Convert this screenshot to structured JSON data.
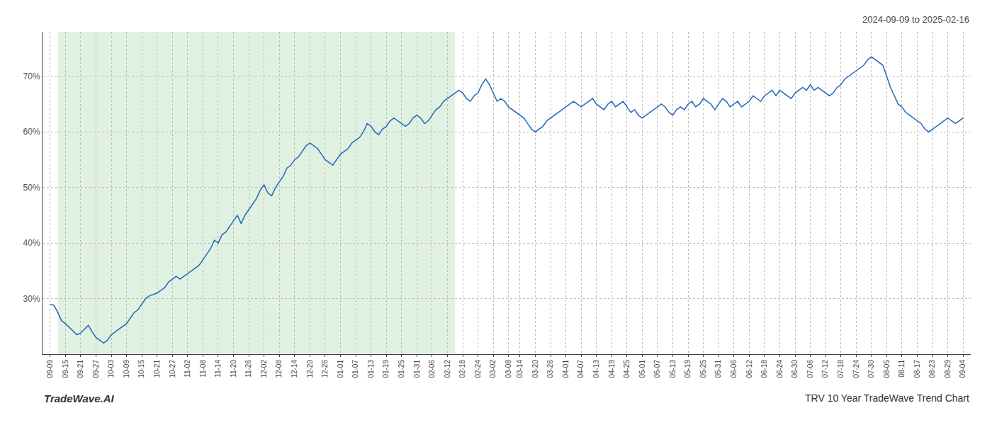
{
  "chart_data": {
    "type": "line",
    "categories": [
      "09-09",
      null,
      null,
      null,
      "09-15",
      null,
      null,
      null,
      "09-21",
      null,
      null,
      null,
      "09-27",
      null,
      null,
      null,
      "10-03",
      null,
      null,
      null,
      "10-09",
      null,
      null,
      null,
      "10-15",
      null,
      null,
      null,
      "10-21",
      null,
      null,
      null,
      "10-27",
      null,
      null,
      null,
      "11-02",
      null,
      null,
      null,
      "11-08",
      null,
      null,
      null,
      "11-14",
      null,
      null,
      null,
      "11-20",
      null,
      null,
      null,
      "11-26",
      null,
      null,
      null,
      "12-02",
      null,
      null,
      null,
      "12-08",
      null,
      null,
      null,
      "12-14",
      null,
      null,
      null,
      "12-20",
      null,
      null,
      null,
      "12-26",
      null,
      null,
      null,
      "01-01",
      null,
      null,
      null,
      "01-07",
      null,
      null,
      null,
      "01-13",
      null,
      null,
      null,
      "01-19",
      null,
      null,
      null,
      "01-25",
      null,
      null,
      null,
      "01-31",
      null,
      null,
      null,
      "02-06",
      null,
      null,
      null,
      "02-12",
      null,
      null,
      null,
      "02-18",
      null,
      null,
      null,
      "02-24",
      null,
      null,
      null,
      "03-02",
      null,
      null,
      null,
      "03-08",
      null,
      null,
      "03-14",
      null,
      null,
      null,
      "03-20",
      null,
      null,
      null,
      "03-26",
      null,
      null,
      null,
      "04-01",
      null,
      null,
      null,
      "04-07",
      null,
      null,
      null,
      "04-13",
      null,
      null,
      null,
      "04-19",
      null,
      null,
      null,
      "04-25",
      null,
      null,
      null,
      "05-01",
      null,
      null,
      null,
      "05-07",
      null,
      null,
      null,
      "05-13",
      null,
      null,
      null,
      "05-19",
      null,
      null,
      null,
      "05-25",
      null,
      null,
      null,
      "05-31",
      null,
      null,
      null,
      "06-06",
      null,
      null,
      null,
      "06-12",
      null,
      null,
      null,
      "06-18",
      null,
      null,
      null,
      "06-24",
      null,
      null,
      null,
      "06-30",
      null,
      null,
      null,
      "07-06",
      null,
      null,
      null,
      "07-12",
      null,
      null,
      null,
      "07-18",
      null,
      null,
      null,
      "07-24",
      null,
      null,
      null,
      "07-30",
      null,
      null,
      null,
      "08-05",
      null,
      null,
      null,
      "08-11",
      null,
      null,
      null,
      "08-17",
      null,
      null,
      null,
      "08-23",
      null,
      null,
      null,
      "08-29",
      null,
      null,
      null,
      "09-04"
    ],
    "values": [
      29.0,
      28.8,
      27.5,
      26.0,
      25.5,
      24.8,
      24.2,
      23.5,
      23.8,
      24.5,
      25.2,
      24.0,
      23.0,
      22.5,
      22.0,
      22.5,
      23.5,
      24.0,
      24.5,
      25.0,
      25.5,
      26.5,
      27.5,
      28.0,
      29.0,
      30.0,
      30.5,
      30.8,
      31.0,
      31.5,
      32.0,
      33.0,
      33.5,
      34.0,
      33.5,
      34.0,
      34.5,
      35.0,
      35.5,
      36.0,
      37.0,
      38.0,
      39.0,
      40.5,
      40.0,
      41.5,
      42.0,
      43.0,
      44.0,
      45.0,
      43.5,
      45.0,
      46.0,
      47.0,
      48.0,
      49.5,
      50.5,
      49.0,
      48.5,
      50.0,
      51.0,
      52.0,
      53.5,
      54.0,
      55.0,
      55.5,
      56.5,
      57.5,
      58.0,
      57.5,
      57.0,
      56.0,
      55.0,
      54.5,
      54.0,
      55.0,
      56.0,
      56.5,
      57.0,
      58.0,
      58.5,
      59.0,
      60.0,
      61.5,
      61.0,
      60.0,
      59.5,
      60.5,
      61.0,
      62.0,
      62.5,
      62.0,
      61.5,
      61.0,
      61.5,
      62.5,
      63.0,
      62.5,
      61.5,
      62.0,
      63.0,
      64.0,
      64.5,
      65.5,
      66.0,
      66.5,
      67.0,
      67.5,
      67.0,
      66.0,
      65.5,
      66.5,
      67.0,
      68.5,
      69.5,
      68.5,
      67.0,
      65.5,
      66.0,
      65.5,
      64.5,
      64.0,
      63.5,
      63.0,
      62.5,
      61.5,
      60.5,
      60.0,
      60.5,
      61.0,
      62.0,
      62.5,
      63.0,
      63.5,
      64.0,
      64.5,
      65.0,
      65.5,
      65.0,
      64.5,
      65.0,
      65.5,
      66.0,
      65.0,
      64.5,
      64.0,
      65.0,
      65.5,
      64.5,
      65.0,
      65.5,
      64.5,
      63.5,
      64.0,
      63.0,
      62.5,
      63.0,
      63.5,
      64.0,
      64.5,
      65.0,
      64.5,
      63.5,
      63.0,
      64.0,
      64.5,
      64.0,
      65.0,
      65.5,
      64.5,
      65.0,
      66.0,
      65.5,
      65.0,
      64.0,
      65.0,
      66.0,
      65.5,
      64.5,
      65.0,
      65.5,
      64.5,
      65.0,
      65.5,
      66.5,
      66.0,
      65.5,
      66.5,
      67.0,
      67.5,
      66.5,
      67.5,
      67.0,
      66.5,
      66.0,
      67.0,
      67.5,
      68.0,
      67.5,
      68.5,
      67.5,
      68.0,
      67.5,
      67.0,
      66.5,
      67.0,
      68.0,
      68.5,
      69.5,
      70.0,
      70.5,
      71.0,
      71.5,
      72.0,
      73.0,
      73.5,
      73.0,
      72.5,
      72.0,
      70.0,
      68.0,
      66.5,
      65.0,
      64.5,
      63.5,
      63.0,
      62.5,
      62.0,
      61.5,
      60.5,
      60.0,
      60.5,
      61.0,
      61.5,
      62.0,
      62.5,
      62.0,
      61.5,
      62.0,
      62.5
    ],
    "color": "#2266bb",
    "ylim": [
      20,
      78
    ],
    "yticks": [
      {
        "value": 30,
        "label": "30%"
      },
      {
        "value": 40,
        "label": "40%"
      },
      {
        "value": 50,
        "label": "50%"
      },
      {
        "value": 60,
        "label": "60%"
      },
      {
        "value": 70,
        "label": "70%"
      }
    ],
    "grid": true,
    "shaded": {
      "from": "09-15",
      "to": "02-12",
      "color": "#c8e6c8"
    },
    "annotations": [
      "2024-09-09 to 2025-02-16",
      "TradeWave.AI",
      "TRV 10 Year TradeWave Trend Chart"
    ]
  }
}
